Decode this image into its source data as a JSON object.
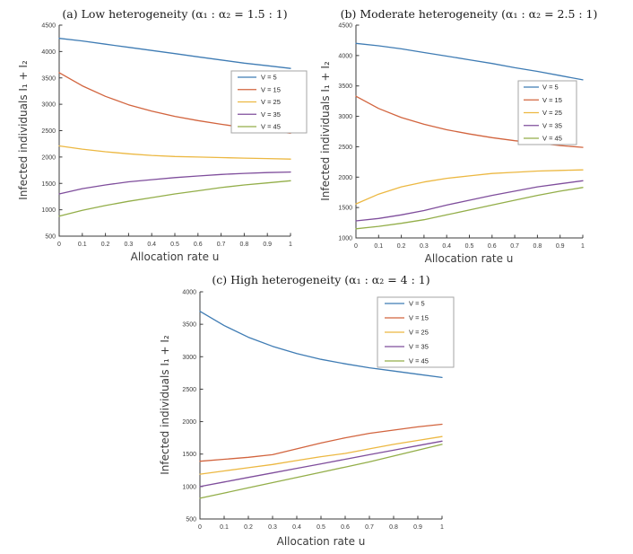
{
  "figure": {
    "background": "#ffffff"
  },
  "palette": {
    "series_colors": [
      "#3f7cb4",
      "#d2643e",
      "#ecb842",
      "#7f4e9c",
      "#93ae49"
    ],
    "axis_color": "#3b3b3b",
    "tick_label_color": "#3b3b3b",
    "legend_border_color": "#a6a6a6",
    "legend_fill": "#ffffff"
  },
  "chart_data": [
    {
      "id": "a",
      "type": "line",
      "title": "(a) Low heterogeneity (α₁ : α₂ = 1.5 : 1)",
      "xlabel": "Allocation rate u",
      "ylabel": "Infected individuals I₁ + I₂",
      "xlim": [
        0,
        1
      ],
      "ylim": [
        500,
        4500
      ],
      "xticks": [
        "0",
        "0.1",
        "0.2",
        "0.3",
        "0.4",
        "0.5",
        "0.6",
        "0.7",
        "0.8",
        "0.9",
        "1"
      ],
      "yticks": [
        500,
        1000,
        1500,
        2000,
        2500,
        3000,
        3500,
        4000,
        4500
      ],
      "grid": false,
      "legend_position": "upper right",
      "x": [
        0,
        0.1,
        0.2,
        0.3,
        0.4,
        0.5,
        0.6,
        0.7,
        0.8,
        0.9,
        1
      ],
      "series": [
        {
          "name": "V = 5",
          "values": [
            4250,
            4200,
            4140,
            4080,
            4020,
            3960,
            3900,
            3840,
            3780,
            3730,
            3680
          ]
        },
        {
          "name": "V = 15",
          "values": [
            3600,
            3350,
            3150,
            2990,
            2870,
            2770,
            2690,
            2620,
            2560,
            2500,
            2450
          ]
        },
        {
          "name": "V = 25",
          "values": [
            2210,
            2150,
            2100,
            2060,
            2030,
            2010,
            2000,
            1990,
            1980,
            1970,
            1960
          ]
        },
        {
          "name": "V = 35",
          "values": [
            1300,
            1400,
            1470,
            1530,
            1570,
            1610,
            1640,
            1670,
            1690,
            1705,
            1715
          ]
        },
        {
          "name": "V = 45",
          "values": [
            880,
            990,
            1080,
            1160,
            1230,
            1300,
            1360,
            1420,
            1470,
            1510,
            1550
          ]
        }
      ]
    },
    {
      "id": "b",
      "type": "line",
      "title": "(b) Moderate heterogeneity (α₁ : α₂ = 2.5 : 1)",
      "xlabel": "Allocation rate u",
      "ylabel": "Infected individuals I₁ + I₂",
      "xlim": [
        0,
        1
      ],
      "ylim": [
        1000,
        4500
      ],
      "xticks": [
        "0",
        "0.1",
        "0.2",
        "0.3",
        "0.4",
        "0.5",
        "0.6",
        "0.7",
        "0.8",
        "0.9",
        "1"
      ],
      "yticks": [
        1000,
        1500,
        2000,
        2500,
        3000,
        3500,
        4000,
        4500
      ],
      "grid": false,
      "legend_position": "middle right",
      "x": [
        0,
        0.1,
        0.2,
        0.3,
        0.4,
        0.5,
        0.6,
        0.7,
        0.8,
        0.9,
        1
      ],
      "series": [
        {
          "name": "V = 5",
          "values": [
            4200,
            4160,
            4110,
            4050,
            3990,
            3930,
            3870,
            3800,
            3740,
            3670,
            3600
          ]
        },
        {
          "name": "V = 15",
          "values": [
            3330,
            3130,
            2980,
            2870,
            2780,
            2710,
            2650,
            2600,
            2560,
            2520,
            2490
          ]
        },
        {
          "name": "V = 25",
          "values": [
            1560,
            1720,
            1840,
            1920,
            1980,
            2020,
            2060,
            2080,
            2100,
            2110,
            2120
          ]
        },
        {
          "name": "V = 35",
          "values": [
            1280,
            1320,
            1380,
            1450,
            1540,
            1620,
            1700,
            1770,
            1840,
            1890,
            1940
          ]
        },
        {
          "name": "V = 45",
          "values": [
            1150,
            1190,
            1240,
            1300,
            1380,
            1460,
            1540,
            1620,
            1700,
            1770,
            1830
          ]
        }
      ]
    },
    {
      "id": "c",
      "type": "line",
      "title": "(c) High heterogeneity (α₁ : α₂ = 4 : 1)",
      "xlabel": "Allocation rate u",
      "ylabel": "Infected individuals I₁ + I₂",
      "xlim": [
        0,
        1
      ],
      "ylim": [
        500,
        4000
      ],
      "xticks": [
        "0",
        "0.1",
        "0.2",
        "0.3",
        "0.4",
        "0.5",
        "0.6",
        "0.7",
        "0.8",
        "0.9",
        "1"
      ],
      "yticks": [
        500,
        1000,
        1500,
        2000,
        2500,
        3000,
        3500,
        4000
      ],
      "grid": false,
      "legend_position": "upper right",
      "x": [
        0,
        0.1,
        0.2,
        0.3,
        0.4,
        0.5,
        0.6,
        0.7,
        0.8,
        0.9,
        1
      ],
      "series": [
        {
          "name": "V = 5",
          "values": [
            3700,
            3480,
            3300,
            3160,
            3050,
            2960,
            2890,
            2830,
            2780,
            2730,
            2680
          ]
        },
        {
          "name": "V = 15",
          "values": [
            1390,
            1420,
            1450,
            1490,
            1580,
            1670,
            1750,
            1820,
            1870,
            1920,
            1960
          ]
        },
        {
          "name": "V = 25",
          "values": [
            1190,
            1240,
            1290,
            1340,
            1400,
            1460,
            1510,
            1580,
            1650,
            1710,
            1770
          ]
        },
        {
          "name": "V = 35",
          "values": [
            1000,
            1070,
            1140,
            1210,
            1280,
            1350,
            1420,
            1490,
            1560,
            1630,
            1700
          ]
        },
        {
          "name": "V = 45",
          "values": [
            820,
            900,
            980,
            1060,
            1140,
            1220,
            1300,
            1380,
            1470,
            1560,
            1650
          ]
        }
      ]
    }
  ]
}
